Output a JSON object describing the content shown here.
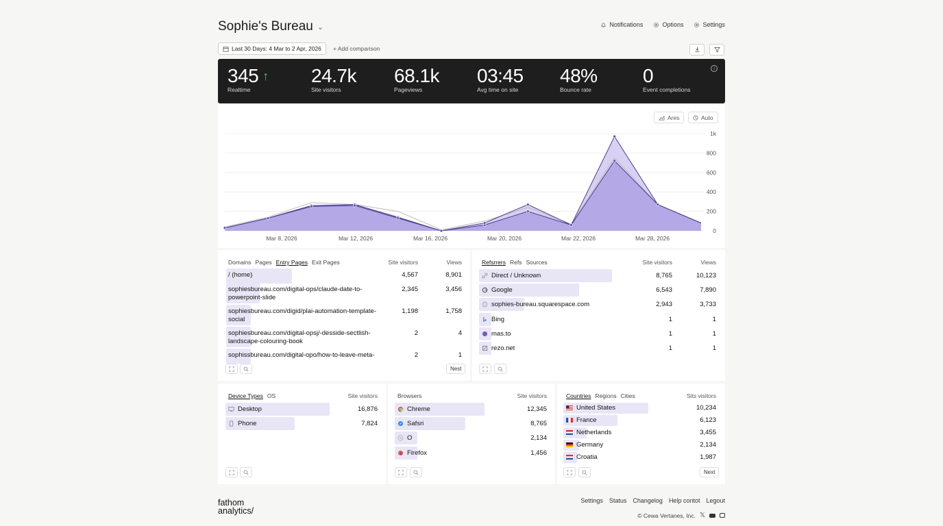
{
  "header": {
    "title": "Sophie's Bureau",
    "nav": [
      "Notifications",
      "Options",
      "Settings"
    ]
  },
  "toolbar": {
    "date_range": "Last 30 Days: 4 Mar to 2 Apr, 2026",
    "add_comparison": "+ Add comparison"
  },
  "stats": [
    {
      "value": "345",
      "label": "Realtime",
      "trend": "up"
    },
    {
      "value": "24.7k",
      "label": "Site visitors"
    },
    {
      "value": "68.1k",
      "label": "Pageviews"
    },
    {
      "value": "03:45",
      "label": "Avg time on site"
    },
    {
      "value": "48%",
      "label": "Bounce rate"
    },
    {
      "value": "0",
      "label": "Event completions"
    }
  ],
  "chart_controls": {
    "area": "Ares",
    "auto": "Auto"
  },
  "chart_data": {
    "type": "area",
    "x_labels": [
      "Mar 8, 2026",
      "Mar 12, 2026",
      "Mar 16, 2026",
      "Mar 20, 2026",
      "Mar 22, 2026",
      "Mar 28, 2026"
    ],
    "y_ticks": [
      "1k",
      "800",
      "600",
      "400",
      "200",
      "0"
    ],
    "ylim": [
      0,
      1000
    ],
    "series": [
      {
        "values": [
          30,
          130,
          260,
          270,
          140,
          0,
          60,
          200,
          60,
          720,
          270,
          80
        ]
      },
      {
        "values": [
          30,
          130,
          250,
          260,
          130,
          0,
          80,
          270,
          60,
          970,
          270,
          80
        ]
      },
      {
        "values": [
          40,
          140,
          290,
          270,
          200,
          10,
          100,
          240,
          70,
          750,
          270,
          80
        ]
      }
    ],
    "colors": {
      "fill": "#b5a8e6",
      "line": "#4a3d8c",
      "shade": "#d8d1f3",
      "compare": "#bbbbbb"
    }
  },
  "pages": {
    "tabs": [
      "Domains",
      "Pages",
      "Entry Pages",
      "Exit Pages"
    ],
    "active_tab": 2,
    "col_visitors": "Site visitors",
    "col_views": "Views",
    "rows": [
      {
        "l1": "/ (home)",
        "l2": "",
        "visitors": "4,567",
        "views": "8,901",
        "pct": 0.51
      },
      {
        "l1": "sophiesbureau.com/digital-ops/claude-date-to-",
        "l2": "powerpoint-slide",
        "visitors": "2,345",
        "views": "3,456",
        "pct": 0.26
      },
      {
        "l1": "sophiesbureau.com/digid/plai-automation-template-",
        "l2": "social",
        "visitors": "1,198",
        "views": "1,758",
        "pct": 0.13
      },
      {
        "l1": "sophiesbureau.com/digital-opsj/-desside-sectlish-",
        "l2": "landscape-colouring-book",
        "visitors": "2",
        "views": "4",
        "pct": 0.01
      },
      {
        "l1": "sophissbureau.com/digital-opo/how-to-leave-meta-",
        "l2": "",
        "visitors": "2",
        "views": "1",
        "pct": 0.01
      }
    ],
    "next": "Nest"
  },
  "referrers": {
    "tabs": [
      "Refsrrers",
      "Refs",
      "Sources"
    ],
    "active_tab": 0,
    "col_visitors": "Site visitors",
    "col_views": "Views",
    "rows": [
      {
        "name": "Direct / Unknown",
        "icon": "link-icon",
        "visitors": "8,765",
        "views": "10,123",
        "pct": 0.97
      },
      {
        "name": "Google",
        "icon": "google-icon",
        "visitors": "6,543",
        "views": "7,890",
        "pct": 0.73
      },
      {
        "name": "sophies-bureau.squarespace.com",
        "icon": "globe-icon",
        "visitors": "2,943",
        "views": "3,733",
        "pct": 0.33
      },
      {
        "name": "Bing",
        "icon": "bing-icon",
        "visitors": "1",
        "views": "1",
        "pct": 0.02
      },
      {
        "name": "mas.to",
        "icon": "mastodon-icon",
        "visitors": "1",
        "views": "1",
        "pct": 0.02
      },
      {
        "name": "rezo.net",
        "icon": "edit-icon",
        "visitors": "1",
        "views": "1",
        "pct": 0.02
      }
    ]
  },
  "devices": {
    "tabs": [
      "Device Types",
      "OS"
    ],
    "active_tab": 0,
    "col_visitors": "Site visitors",
    "rows": [
      {
        "name": "Desktop",
        "icon": "desktop-icon",
        "visitors": "16,876",
        "pct": 0.68
      },
      {
        "name": "Phone",
        "icon": "phone-icon",
        "visitors": "7,824",
        "pct": 0.45
      }
    ]
  },
  "browsers": {
    "tabs": [
      "Browsers"
    ],
    "col_visitors": "Site visitors",
    "rows": [
      {
        "name": "Chreme",
        "icon": "chrome-icon",
        "visitors": "12,345",
        "pct": 0.6
      },
      {
        "name": "Safsri",
        "icon": "safari-icon",
        "visitors": "8,765",
        "pct": 0.47
      },
      {
        "name": "O",
        "icon": "browser-icon",
        "visitors": "2,134",
        "pct": 0.15
      },
      {
        "name": "Firefox",
        "icon": "firefox-icon",
        "visitors": "1,456",
        "pct": 0.1
      }
    ]
  },
  "countries": {
    "tabs": [
      "Countries",
      "Regions",
      "Cities"
    ],
    "active_tab": 0,
    "col_visitors": "Sits visitors",
    "rows": [
      {
        "name": "United States",
        "flag": "us",
        "visitors": "10,234",
        "pct": 0.55
      },
      {
        "name": "France",
        "flag": "fr",
        "visitors": "6,123",
        "pct": 0.35
      },
      {
        "name": "Netherlands",
        "flag": "nl",
        "visitors": "3,455",
        "pct": 0.15
      },
      {
        "name": "Germany",
        "flag": "de",
        "visitors": "2,134",
        "pct": 0.1
      },
      {
        "name": "Croatia",
        "flag": "hr",
        "visitors": "1,987",
        "pct": 0.09
      }
    ],
    "next": "Next"
  },
  "footer": {
    "logo_line1": "fathom",
    "logo_line2": "analytics/",
    "links": [
      "Settings",
      "Status",
      "Changelog",
      "Help contot",
      "Legout"
    ],
    "copyright": "© Cewa Vertanes, Inc."
  }
}
